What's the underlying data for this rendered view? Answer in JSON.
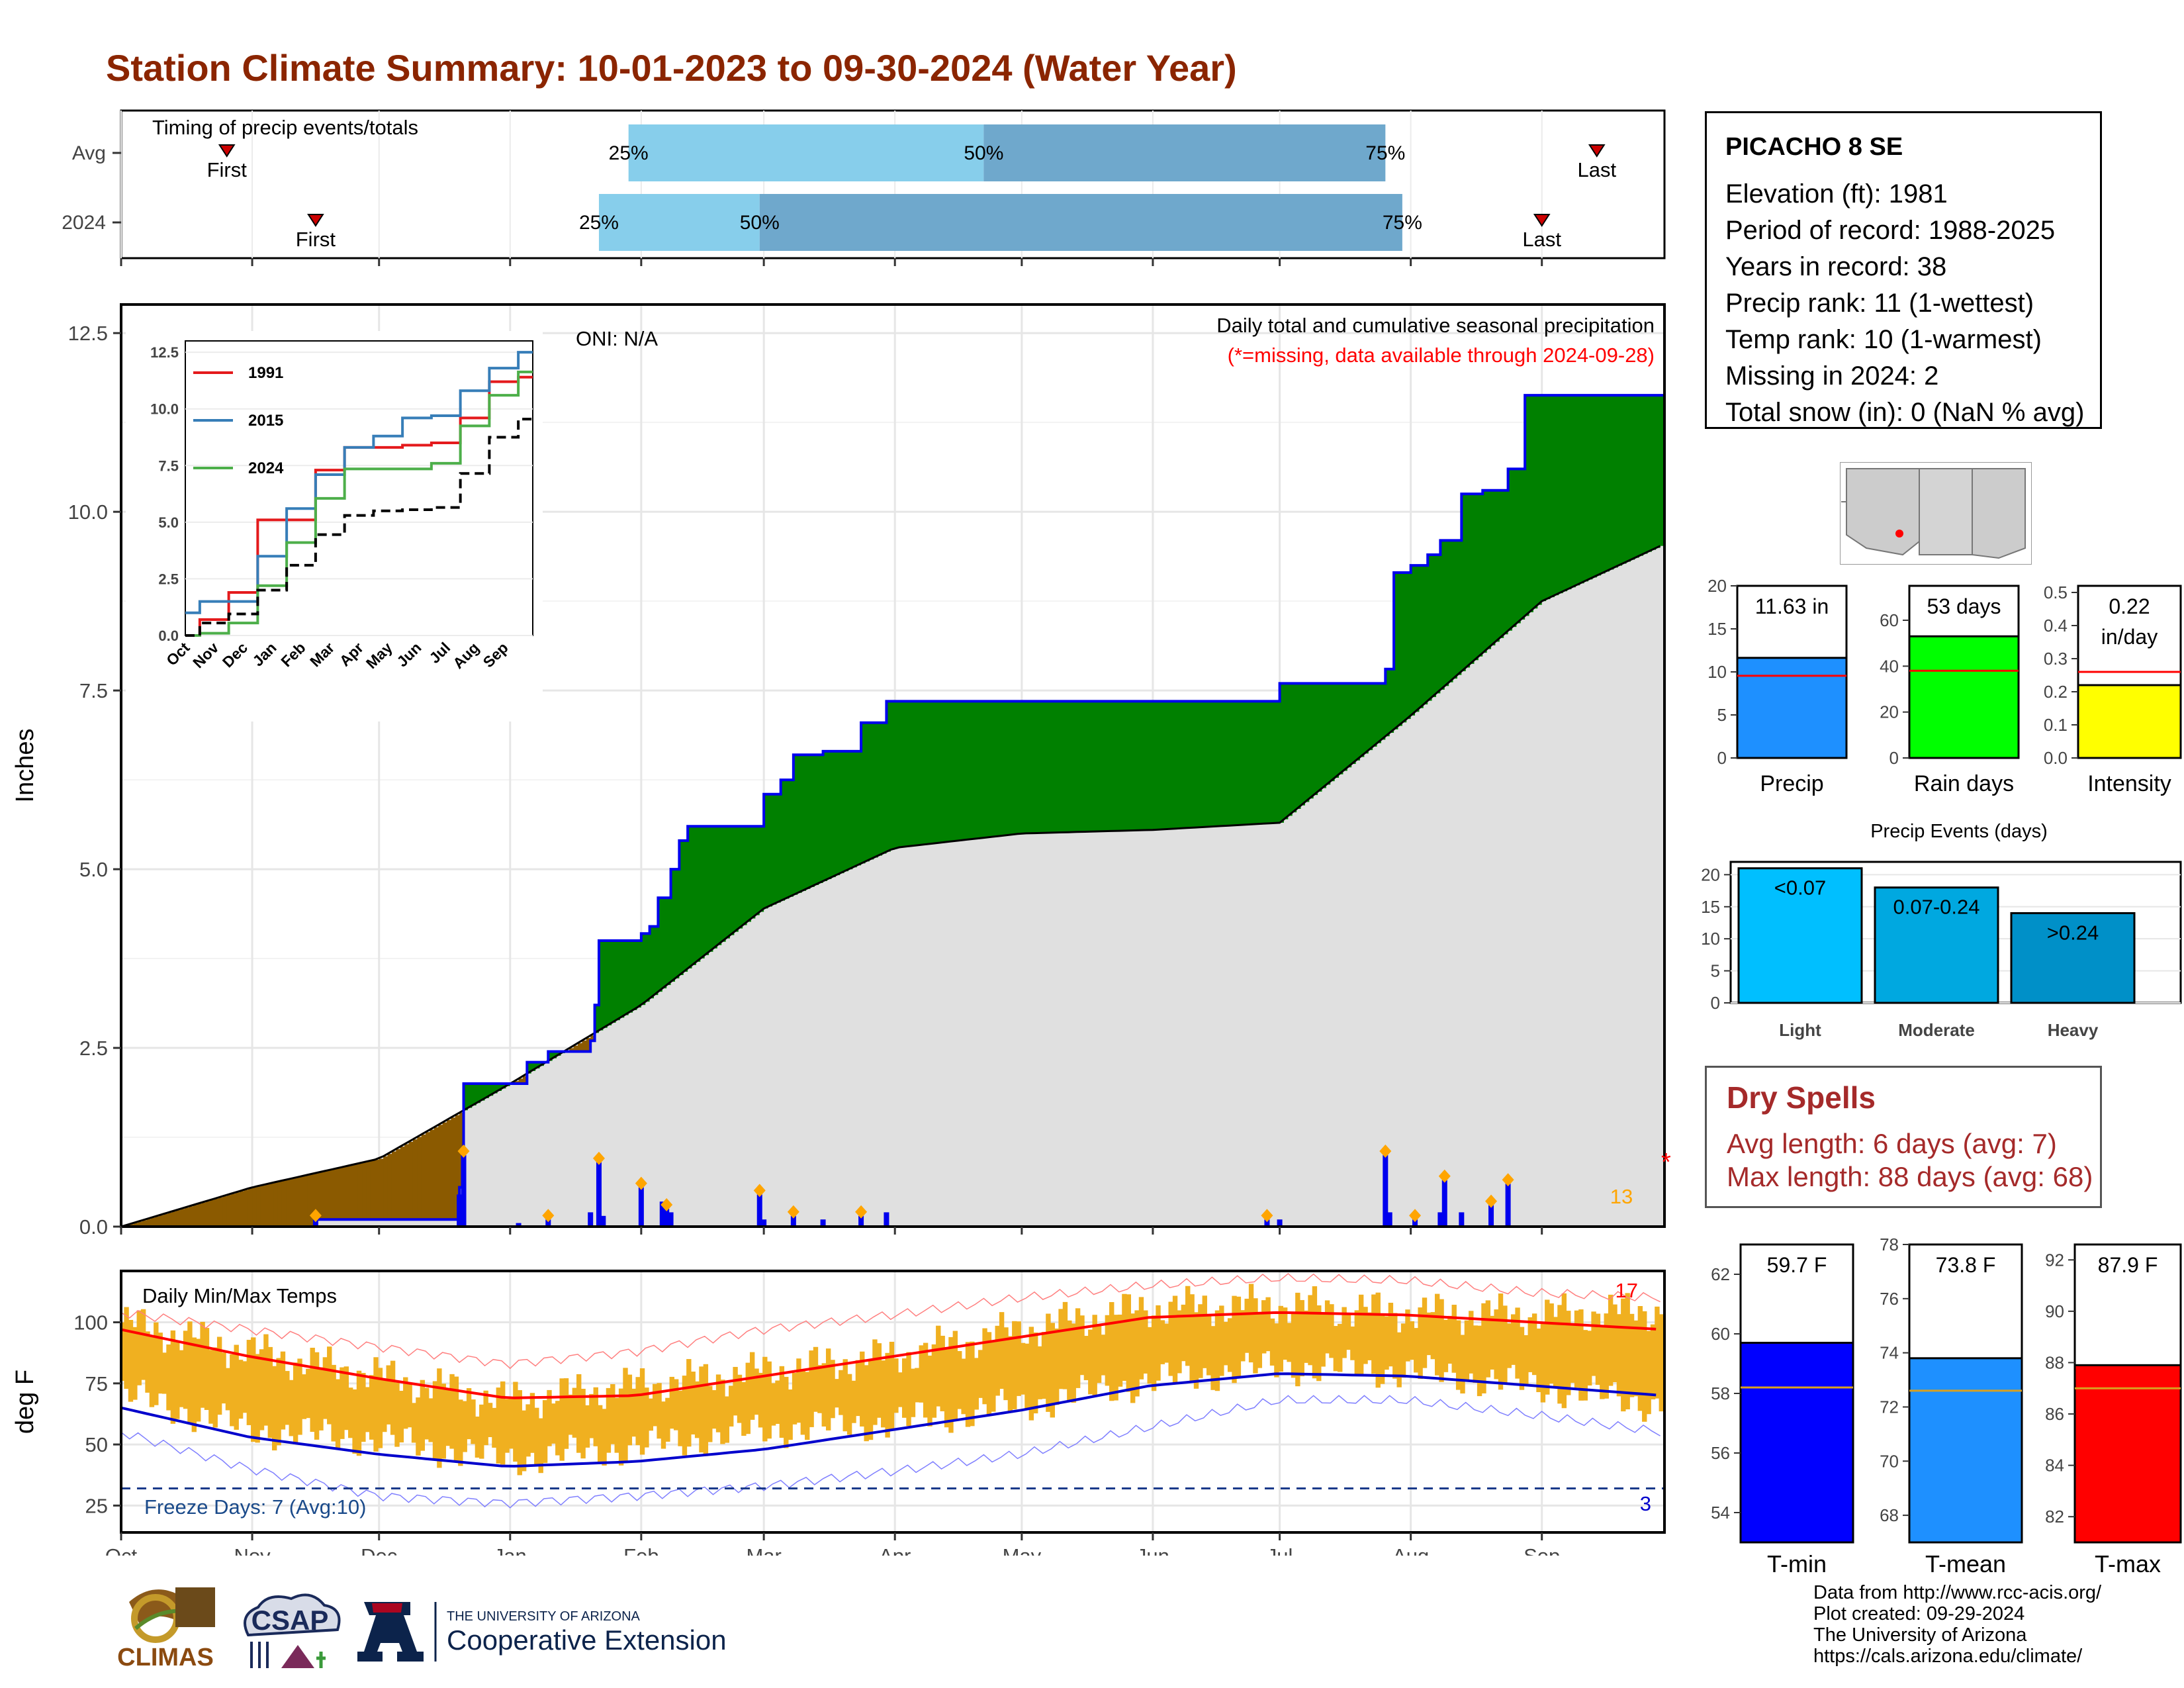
{
  "title": "Station Climate Summary: 10-01-2023 to 09-30-2024 (Water Year)",
  "colors": {
    "title": "#8b2500",
    "above_avg_fill": "#008000",
    "below_avg_fill": "#8b5a00",
    "avg_fill": "#e0e0e0",
    "observed_line": "#0000ee",
    "daily_bar": "#0000ee",
    "temp_range": "#f0b020",
    "tmax_line": "#ff0000",
    "tmin_line": "#0000cc",
    "precip_bar": "#1e90ff",
    "raindays_bar": "#00ff00",
    "intensity_bar": "#ffff00",
    "tmin_bar": "#0000ff",
    "tmean_bar": "#1e90ff",
    "tmax_bar": "#ff0000",
    "light_bar": "#00bfff",
    "moderate_bar": "#00a8e0",
    "heavy_bar": "#0090c8"
  },
  "timing": {
    "label": "Timing of precip events/totals",
    "rows": [
      "Avg",
      "2024"
    ],
    "pct25": "25%",
    "pct50": "50%",
    "pct75": "75%",
    "first": "First",
    "last": "Last"
  },
  "station": {
    "name": "PICACHO 8 SE",
    "lines": [
      "Elevation (ft): 1981",
      "Period of record: 1988-2025",
      "Years in record: 38",
      "Precip rank: 11 (1-wettest)",
      "Temp rank: 10 (1-warmest)",
      "Missing in 2024: 2",
      "Total snow (in): 0 (NaN % avg)"
    ]
  },
  "main_precip": {
    "ylabel": "Inches",
    "oni": "ONI: N/A",
    "desc": "Daily total and cumulative seasonal precipitation",
    "missing_note": "(*=missing, data available through 2024-09-28)",
    "count_label": "13",
    "missing_mark": "*",
    "yticks": [
      "0.0",
      "2.5",
      "5.0",
      "7.5",
      "10.0",
      "12.5"
    ]
  },
  "temps": {
    "label": "Daily Min/Max Temps",
    "ylabel": "deg F",
    "freeze_note": "Freeze Days: 7 (Avg:10)",
    "hot_count": "17",
    "cold_count": "3",
    "yticks": [
      "25",
      "50",
      "75",
      "100"
    ]
  },
  "months": [
    "Oct",
    "Nov",
    "Dec",
    "Jan",
    "Feb",
    "Mar",
    "Apr",
    "May",
    "Jun",
    "Jul",
    "Aug",
    "Sep"
  ],
  "inset": {
    "months": [
      "Oct",
      "Nov",
      "Dec",
      "Jan",
      "Feb",
      "Mar",
      "Apr",
      "May",
      "Jun",
      "Jul",
      "Aug",
      "Sep"
    ],
    "yticks": [
      "0.0",
      "2.5",
      "5.0",
      "7.5",
      "10.0",
      "12.5"
    ],
    "legend": [
      "1991",
      "2015",
      "2024"
    ]
  },
  "summary_bars": {
    "precip": {
      "label": "Precip",
      "value_text": "11.63 in",
      "yticks": [
        "0",
        "5",
        "10",
        "15",
        "20"
      ]
    },
    "raindays": {
      "label": "Rain days",
      "value_text": "53 days",
      "yticks": [
        "0",
        "20",
        "40",
        "60"
      ]
    },
    "intensity": {
      "label": "Intensity",
      "value_text_1": "0.22",
      "value_text_2": "in/day",
      "yticks": [
        "0.0",
        "0.1",
        "0.2",
        "0.3",
        "0.4",
        "0.5"
      ]
    }
  },
  "events": {
    "title": "Precip Events (days)",
    "yticks": [
      "0",
      "5",
      "10",
      "15",
      "20"
    ],
    "bars": [
      {
        "label": "Light",
        "range": "<0.07"
      },
      {
        "label": "Moderate",
        "range": "0.07-0.24"
      },
      {
        "label": "Heavy",
        "range": ">0.24"
      }
    ]
  },
  "dry_spells": {
    "title": "Dry Spells",
    "avg": "Avg length: 6 days (avg: 7)",
    "max": "Max length: 88 days (avg: 68)"
  },
  "temp_bars": {
    "tmin": {
      "label": "T-min",
      "value_text": "59.7 F",
      "yticks": [
        "54",
        "56",
        "58",
        "60",
        "62"
      ]
    },
    "tmean": {
      "label": "T-mean",
      "value_text": "73.8 F",
      "yticks": [
        "68",
        "70",
        "72",
        "74",
        "76",
        "78"
      ]
    },
    "tmax": {
      "label": "T-max",
      "value_text": "87.9 F",
      "yticks": [
        "82",
        "84",
        "86",
        "88",
        "90",
        "92"
      ]
    }
  },
  "footer": [
    "Data from http://www.rcc-acis.org/",
    "Plot created: 09-29-2024",
    "The University of Arizona",
    "https://cals.arizona.edu/climate/"
  ],
  "logos": {
    "climas": "CLIMAS",
    "csap": "CSAP",
    "ua_small": "THE UNIVERSITY OF ARIZONA",
    "ua_big": "Cooperative Extension"
  },
  "chart_data": [
    {
      "type": "bar",
      "subtype": "timing",
      "title": "Timing of precip events/totals",
      "series": [
        {
          "name": "Avg",
          "first": "2023-10-26",
          "p25": "2024-01-29",
          "p50": "2024-04-22",
          "p75": "2024-07-26",
          "last": "2024-09-14"
        },
        {
          "name": "2024",
          "first": "2023-11-16",
          "p25": "2024-01-22",
          "p50": "2024-02-29",
          "p75": "2024-07-30",
          "last": "2024-09-01"
        }
      ]
    },
    {
      "type": "area",
      "title": "Daily total and cumulative seasonal precipitation",
      "ylabel": "Inches",
      "ylim": [
        0,
        12.5
      ],
      "x_range": [
        "2023-10-01",
        "2024-09-30"
      ],
      "cumulative_observed": {
        "x": [
          "2023-10-01",
          "2023-11-16",
          "2023-11-18",
          "2023-12-20",
          "2023-12-21",
          "2023-12-22",
          "2024-01-05",
          "2024-01-10",
          "2024-01-20",
          "2024-01-21",
          "2024-01-22",
          "2024-02-01",
          "2024-02-03",
          "2024-02-05",
          "2024-02-08",
          "2024-02-10",
          "2024-02-12",
          "2024-02-15",
          "2024-02-28",
          "2024-03-01",
          "2024-03-05",
          "2024-03-08",
          "2024-03-15",
          "2024-03-22",
          "2024-03-24",
          "2024-03-30",
          "2024-06-28",
          "2024-07-01",
          "2024-07-26",
          "2024-07-28",
          "2024-08-01",
          "2024-08-05",
          "2024-08-08",
          "2024-08-13",
          "2024-08-18",
          "2024-08-24",
          "2024-08-28",
          "2024-09-30"
        ],
        "y": [
          0.0,
          0.1,
          0.1,
          0.55,
          2.0,
          2.0,
          2.3,
          2.45,
          2.6,
          3.1,
          4.0,
          4.1,
          4.2,
          4.6,
          5.0,
          5.4,
          5.6,
          5.6,
          5.6,
          6.05,
          6.25,
          6.6,
          6.65,
          6.65,
          7.05,
          7.35,
          7.35,
          7.6,
          7.8,
          9.15,
          9.25,
          9.4,
          9.6,
          10.25,
          10.3,
          10.6,
          11.63,
          11.63
        ]
      },
      "cumulative_average": {
        "x": [
          "2023-10-01",
          "2023-11-01",
          "2023-12-01",
          "2024-01-01",
          "2024-02-01",
          "2024-03-01",
          "2024-04-01",
          "2024-05-01",
          "2024-06-01",
          "2024-07-01",
          "2024-08-01",
          "2024-09-01",
          "2024-09-30"
        ],
        "y": [
          0.0,
          0.55,
          0.95,
          2.0,
          3.1,
          4.45,
          5.3,
          5.5,
          5.55,
          5.65,
          7.15,
          8.75,
          9.55
        ]
      },
      "daily": {
        "x": [
          "2023-11-16",
          "2023-12-20",
          "2023-12-21",
          "2024-01-03",
          "2024-01-10",
          "2024-01-20",
          "2024-01-22",
          "2024-01-23",
          "2024-02-01",
          "2024-02-06",
          "2024-02-07",
          "2024-02-08",
          "2024-02-29",
          "2024-03-01",
          "2024-03-08",
          "2024-03-15",
          "2024-03-24",
          "2024-03-30",
          "2024-06-28",
          "2024-07-01",
          "2024-07-26",
          "2024-07-27",
          "2024-08-02",
          "2024-08-08",
          "2024-08-09",
          "2024-08-13",
          "2024-08-20",
          "2024-08-24"
        ],
        "y": [
          0.1,
          0.45,
          1.0,
          0.05,
          0.1,
          0.2,
          0.9,
          0.15,
          0.55,
          0.35,
          0.25,
          0.2,
          0.45,
          0.1,
          0.15,
          0.1,
          0.15,
          0.2,
          0.1,
          0.1,
          1.0,
          0.2,
          0.1,
          0.2,
          0.65,
          0.2,
          0.3,
          0.6
        ]
      },
      "annotations": [
        "ONI: N/A",
        "(*=missing, data available through 2024-09-28)",
        "13"
      ]
    },
    {
      "type": "line",
      "title": "Inset cumulative precipitation comparison",
      "ylim": [
        0,
        12.5
      ],
      "categories": [
        "Oct",
        "Nov",
        "Dec",
        "Jan",
        "Feb",
        "Mar",
        "Apr",
        "May",
        "Jun",
        "Jul",
        "Aug",
        "Sep",
        "Sep30"
      ],
      "series": [
        {
          "name": "1991",
          "values": [
            0.0,
            0.7,
            1.9,
            5.1,
            5.1,
            7.3,
            8.3,
            8.3,
            8.4,
            8.5,
            9.6,
            11.2,
            11.4
          ]
        },
        {
          "name": "2015",
          "values": [
            1.0,
            1.5,
            1.5,
            3.5,
            5.6,
            7.1,
            8.3,
            8.8,
            9.6,
            9.7,
            10.8,
            11.8,
            12.5
          ]
        },
        {
          "name": "2024",
          "values": [
            0.0,
            0.1,
            0.55,
            2.2,
            4.1,
            6.05,
            7.35,
            7.35,
            7.35,
            7.6,
            9.25,
            10.6,
            11.63
          ]
        },
        {
          "name": "Average",
          "values": [
            0.0,
            0.55,
            0.95,
            2.0,
            3.1,
            4.45,
            5.3,
            5.5,
            5.55,
            5.65,
            7.15,
            8.75,
            9.55
          ]
        }
      ]
    },
    {
      "type": "line",
      "title": "Daily Min/Max Temps",
      "ylabel": "deg F",
      "ylim": [
        15,
        120
      ],
      "x_range": [
        "2023-10-01",
        "2024-09-30"
      ],
      "categories": [
        "Oct",
        "Nov",
        "Dec",
        "Jan",
        "Feb",
        "Mar",
        "Apr",
        "May",
        "Jun",
        "Jul",
        "Aug",
        "Sep",
        "Sep30"
      ],
      "series": [
        {
          "name": "Avg Tmax",
          "values": [
            97,
            86,
            77,
            69,
            70,
            78,
            86,
            94,
            102,
            104,
            103,
            100,
            97
          ]
        },
        {
          "name": "Avg Tmin",
          "values": [
            65,
            53,
            46,
            41,
            43,
            48,
            56,
            64,
            74,
            79,
            78,
            74,
            70
          ]
        },
        {
          "name": "Record Tmax",
          "values": [
            104,
            97,
            90,
            83,
            88,
            97,
            103,
            110,
            115,
            118,
            117,
            112,
            110
          ]
        },
        {
          "name": "Record Tmin",
          "values": [
            55,
            40,
            29,
            26,
            29,
            33,
            39,
            46,
            57,
            68,
            68,
            62,
            55
          ]
        },
        {
          "name": "Obs Tmax",
          "values": [
            100,
            88,
            78,
            68,
            74,
            80,
            86,
            97,
            106,
            107,
            104,
            103,
            105
          ]
        },
        {
          "name": "Obs Tmin",
          "values": [
            67,
            52,
            48,
            40,
            45,
            52,
            55,
            62,
            72,
            78,
            76,
            70,
            62
          ]
        }
      ],
      "freeze_threshold": 32,
      "annotations": [
        "Freeze Days: 7 (Avg:10)",
        "17",
        "3"
      ]
    },
    {
      "type": "bar",
      "title": "Precip",
      "categories": [
        "Precip"
      ],
      "values": [
        11.63
      ],
      "average": 9.55,
      "ylim": [
        0,
        20
      ]
    },
    {
      "type": "bar",
      "title": "Rain days",
      "categories": [
        "Rain days"
      ],
      "values": [
        53
      ],
      "average": 38,
      "ylim": [
        0,
        70
      ]
    },
    {
      "type": "bar",
      "title": "Intensity",
      "categories": [
        "Intensity"
      ],
      "values": [
        0.22
      ],
      "average": 0.26,
      "ylim": [
        0,
        0.5
      ]
    },
    {
      "type": "bar",
      "title": "Precip Events (days)",
      "categories": [
        "Light",
        "Moderate",
        "Heavy"
      ],
      "values": [
        21,
        18,
        14
      ],
      "ylim": [
        0,
        22
      ]
    },
    {
      "type": "bar",
      "title": "T-min",
      "categories": [
        "T-min"
      ],
      "values": [
        59.7
      ],
      "average": 58.2,
      "ylim": [
        53,
        63
      ]
    },
    {
      "type": "bar",
      "title": "T-mean",
      "categories": [
        "T-mean"
      ],
      "values": [
        73.8
      ],
      "average": 72.6,
      "ylim": [
        67,
        78
      ]
    },
    {
      "type": "bar",
      "title": "T-max",
      "categories": [
        "T-max"
      ],
      "values": [
        87.9
      ],
      "average": 87.0,
      "ylim": [
        81,
        92
      ]
    }
  ]
}
